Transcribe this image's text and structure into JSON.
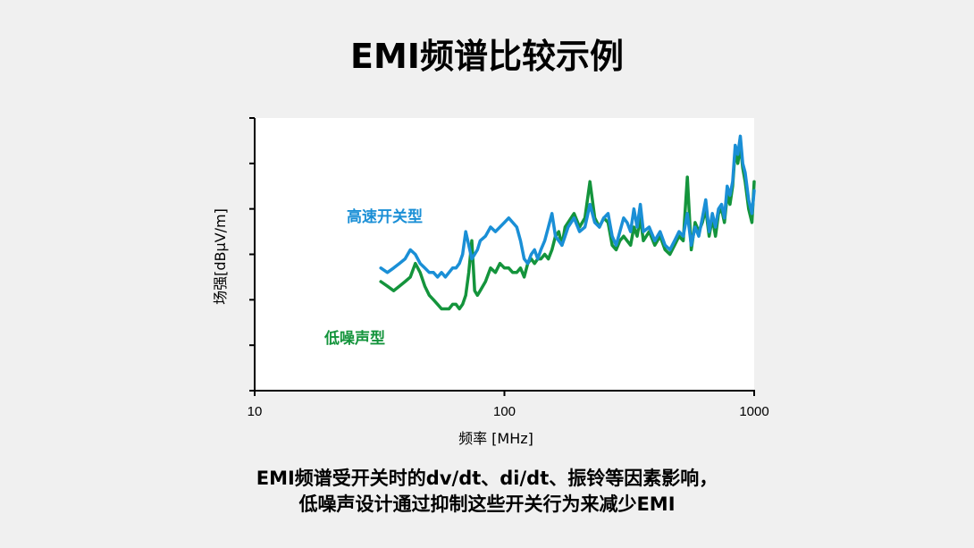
{
  "title": "EMI频谱比较示例",
  "caption": {
    "line1": "EMI频谱受开关时的dv/dt、di/dt、振铃等因素影响，",
    "line2": "低噪声设计通过抑制这些开关行为来减少EMI"
  },
  "chart_data": {
    "type": "line",
    "xlabel": "频率 [MHz]",
    "ylabel": "场强[dBμV/m]",
    "x_scale": "log",
    "xlim": [
      10,
      1000
    ],
    "ylim": [
      0,
      6
    ],
    "x_ticks": [
      10,
      100,
      1000
    ],
    "x_tick_labels": [
      "10",
      "100",
      "1000"
    ],
    "y_ticks": [
      0,
      1,
      2,
      3,
      4,
      5,
      6
    ],
    "y_tick_labels": [
      "",
      "",
      "",
      "",
      "",
      "",
      ""
    ],
    "grid": false,
    "series": [
      {
        "name": "高速开关型",
        "color": "#1a8fd6",
        "x": [
          32,
          34,
          36,
          38,
          40,
          42,
          44,
          46,
          48,
          50,
          52,
          54,
          56,
          58,
          60,
          62,
          64,
          66,
          68,
          70,
          72,
          74,
          76,
          78,
          80,
          84,
          88,
          92,
          96,
          100,
          104,
          108,
          112,
          116,
          120,
          124,
          128,
          132,
          136,
          140,
          145,
          150,
          155,
          160,
          165,
          170,
          175,
          180,
          190,
          200,
          210,
          220,
          230,
          240,
          250,
          260,
          270,
          280,
          290,
          300,
          310,
          320,
          330,
          340,
          350,
          360,
          380,
          400,
          420,
          440,
          460,
          480,
          500,
          520,
          540,
          560,
          580,
          600,
          620,
          640,
          660,
          680,
          700,
          720,
          740,
          760,
          780,
          800,
          820,
          840,
          860,
          880,
          900,
          920,
          950,
          980,
          1000
        ],
        "y": [
          2.7,
          2.6,
          2.7,
          2.8,
          2.9,
          3.1,
          3.0,
          2.8,
          2.7,
          2.6,
          2.6,
          2.5,
          2.6,
          2.5,
          2.6,
          2.7,
          2.7,
          2.8,
          3.0,
          3.5,
          3.2,
          2.9,
          3.0,
          3.1,
          3.3,
          3.4,
          3.6,
          3.5,
          3.6,
          3.7,
          3.8,
          3.7,
          3.6,
          3.3,
          2.9,
          2.8,
          3.0,
          3.1,
          2.9,
          3.1,
          3.3,
          3.6,
          3.9,
          3.4,
          3.3,
          3.2,
          3.4,
          3.6,
          3.8,
          3.5,
          3.6,
          4.1,
          3.7,
          3.6,
          3.8,
          3.9,
          3.4,
          3.2,
          3.5,
          3.8,
          3.7,
          3.5,
          4.0,
          3.6,
          4.1,
          3.5,
          3.6,
          3.3,
          3.5,
          3.2,
          3.1,
          3.3,
          3.5,
          3.4,
          3.9,
          3.2,
          3.6,
          3.4,
          3.8,
          4.2,
          3.5,
          3.9,
          3.6,
          4.0,
          4.1,
          3.8,
          4.5,
          4.3,
          4.6,
          5.4,
          5.2,
          5.6,
          5.0,
          4.8,
          4.2,
          3.9,
          4.4
        ],
        "label_pos": "upper-left"
      },
      {
        "name": "低噪声型",
        "color": "#14943c",
        "x": [
          32,
          34,
          36,
          38,
          40,
          42,
          44,
          46,
          48,
          50,
          52,
          54,
          56,
          58,
          60,
          62,
          64,
          66,
          68,
          70,
          72,
          74,
          76,
          78,
          80,
          84,
          88,
          92,
          96,
          100,
          104,
          108,
          112,
          116,
          120,
          124,
          128,
          132,
          136,
          140,
          145,
          150,
          155,
          160,
          165,
          170,
          175,
          180,
          190,
          200,
          210,
          220,
          230,
          240,
          250,
          260,
          270,
          280,
          290,
          300,
          310,
          320,
          330,
          340,
          350,
          360,
          380,
          400,
          420,
          440,
          460,
          480,
          500,
          520,
          540,
          560,
          580,
          600,
          620,
          640,
          660,
          680,
          700,
          720,
          740,
          760,
          780,
          800,
          820,
          840,
          860,
          880,
          900,
          920,
          950,
          980,
          1000
        ],
        "y": [
          2.4,
          2.3,
          2.2,
          2.3,
          2.4,
          2.5,
          2.8,
          2.6,
          2.3,
          2.1,
          2.0,
          1.9,
          1.8,
          1.8,
          1.8,
          1.9,
          1.9,
          1.8,
          1.9,
          2.1,
          2.6,
          3.3,
          2.2,
          2.1,
          2.2,
          2.4,
          2.7,
          2.6,
          2.8,
          2.7,
          2.7,
          2.6,
          2.6,
          2.7,
          2.5,
          2.8,
          2.9,
          2.8,
          2.9,
          2.9,
          3.0,
          2.9,
          3.1,
          3.4,
          3.5,
          3.2,
          3.6,
          3.7,
          3.9,
          3.6,
          3.8,
          4.6,
          3.8,
          3.6,
          3.8,
          3.7,
          3.2,
          3.1,
          3.3,
          3.4,
          3.3,
          3.2,
          3.6,
          3.4,
          3.8,
          3.3,
          3.5,
          3.2,
          3.4,
          3.1,
          3.0,
          3.2,
          3.4,
          3.3,
          4.7,
          3.1,
          3.7,
          3.5,
          3.7,
          4.0,
          3.4,
          3.8,
          3.4,
          3.9,
          4.0,
          3.7,
          4.3,
          4.1,
          4.5,
          5.3,
          5.0,
          5.4,
          4.9,
          4.6,
          4.0,
          3.7,
          4.6
        ],
        "label_pos": "lower-left"
      }
    ]
  }
}
